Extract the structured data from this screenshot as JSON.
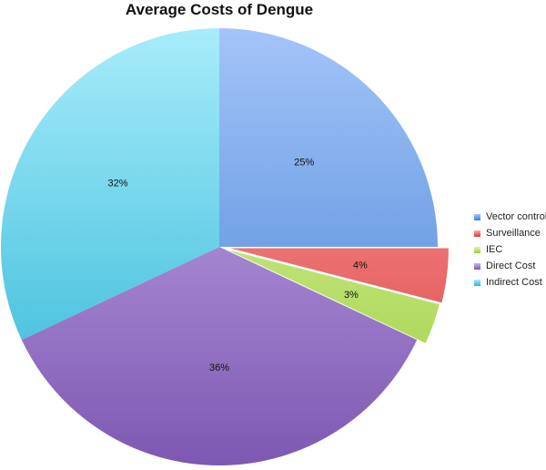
{
  "chart_data": {
    "type": "pie",
    "title": "Average Costs of Dengue",
    "legend_position": "right",
    "slices": [
      {
        "name": "Vector control",
        "value": 25,
        "label": "25%",
        "color_light": "#a4c4f8",
        "color_dark": "#3f7fd4"
      },
      {
        "name": "Surveillance",
        "value": 4,
        "label": "4%",
        "color_light": "#ffaaaa",
        "color_dark": "#d83a3a"
      },
      {
        "name": "IEC",
        "value": 3,
        "label": "3%",
        "color_light": "#e2f8b4",
        "color_dark": "#9ccd3a"
      },
      {
        "name": "Direct Cost",
        "value": 36,
        "label": "36%",
        "color_light": "#c9b2ee",
        "color_dark": "#7e58b2"
      },
      {
        "name": "Indirect Cost",
        "value": 32,
        "label": "32%",
        "color_light": "#a8ecfb",
        "color_dark": "#2ab4d4"
      }
    ]
  }
}
